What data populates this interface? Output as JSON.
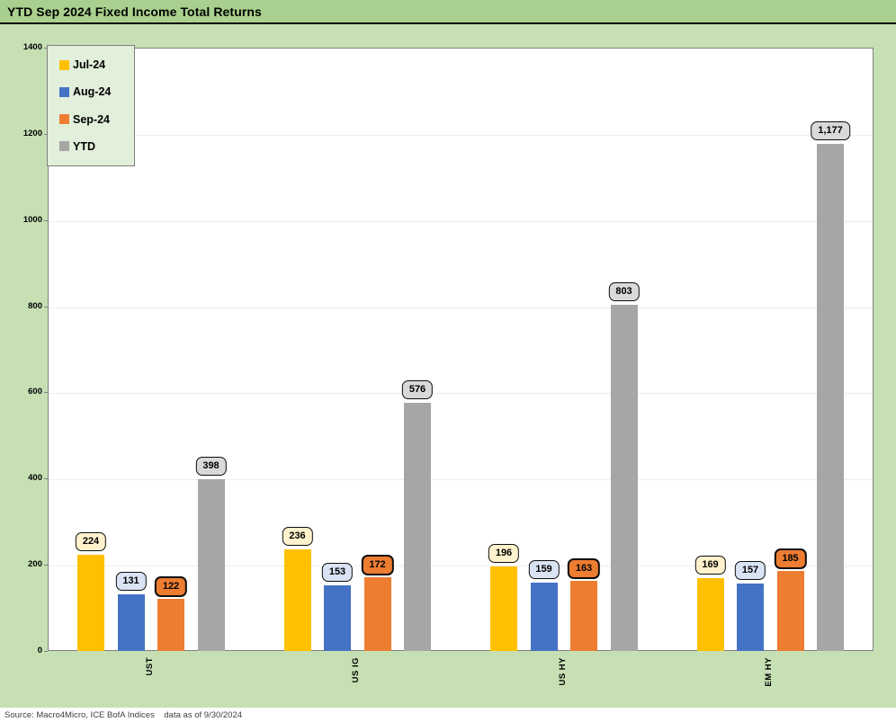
{
  "title": "YTD Sep 2024 Fixed Income Total Returns",
  "source_note": "Source: Macro4Micro, ICE BofA Indices    data as of 9/30/2024",
  "colors": {
    "title_bar_bg": "#a9d08e",
    "page_bg": "#c6e0b4",
    "legend_bg": "#e2efda",
    "plot_bg": "#ffffff",
    "plot_border": "#7f7f7f",
    "gridline": "#ededed",
    "jul": "#ffc000",
    "aug": "#4472c4",
    "sep": "#ed7d31",
    "ytd": "#a6a6a6",
    "jul_label_fill": "#fff2cc",
    "aug_label_fill": "#dae3f3",
    "sep_label_fill": "#ed7d31",
    "ytd_label_fill": "#d9d9d9"
  },
  "chart_data": {
    "type": "bar",
    "title": "YTD Sep 2024 Fixed Income Total Returns",
    "categories": [
      "UST",
      "US IG",
      "US HY",
      "EM HY"
    ],
    "series": [
      {
        "name": "Jul-24",
        "color": "#ffc000",
        "label_fill": "#fff2cc",
        "label_border_width": 1.4,
        "values": [
          224,
          236,
          196,
          169
        ]
      },
      {
        "name": "Aug-24",
        "color": "#4472c4",
        "label_fill": "#dae3f3",
        "label_border_width": 1.4,
        "values": [
          131,
          153,
          159,
          157
        ]
      },
      {
        "name": "Sep-24",
        "color": "#ed7d31",
        "label_fill": "#ed7d31",
        "label_border_width": 2.2,
        "values": [
          122,
          172,
          163,
          185
        ]
      },
      {
        "name": "YTD",
        "color": "#a6a6a6",
        "label_fill": "#d9d9d9",
        "label_border_width": 1.4,
        "values": [
          398,
          576,
          803,
          1177
        ]
      }
    ],
    "value_labels": [
      [
        "224",
        "236",
        "196",
        "169"
      ],
      [
        "131",
        "153",
        "159",
        "157"
      ],
      [
        "122",
        "172",
        "163",
        "185"
      ],
      [
        "398",
        "576",
        "803",
        "1,177"
      ]
    ],
    "xlabel": "",
    "ylabel": "",
    "ylim": [
      0,
      1400
    ],
    "ytick_step": 200,
    "yticks": [
      "0",
      "200",
      "400",
      "600",
      "800",
      "1000",
      "1200",
      "1400"
    ],
    "grid": true,
    "legend_position": "top-left"
  }
}
